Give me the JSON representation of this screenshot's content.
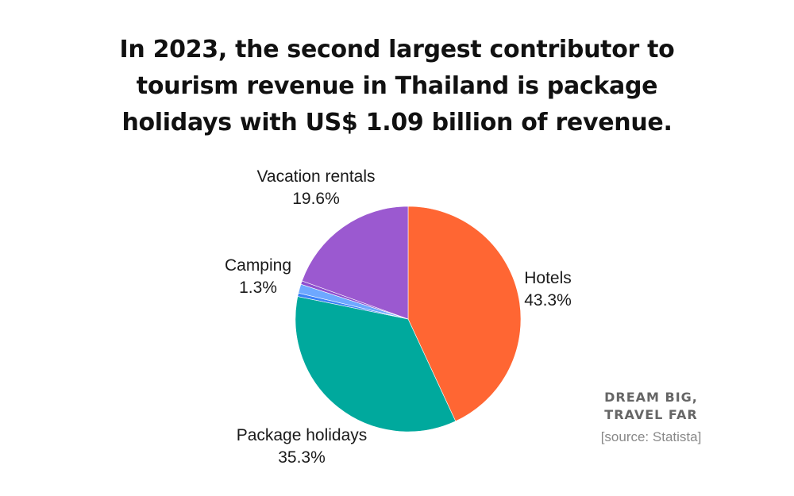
{
  "title_lines": [
    "In 2023, the second largest contributor to",
    "tourism revenue in Thailand is package",
    "holidays with US$ 1.09 billion of revenue."
  ],
  "brand_lines": [
    "DREAM BIG,",
    "TRAVEL FAR"
  ],
  "source": "[source: Statista]",
  "chart_data": {
    "type": "pie",
    "title": "In 2023, the second largest contributor to tourism revenue in Thailand is package holidays with US$ 1.09 billion of revenue.",
    "start_angle_deg": 0,
    "direction": "clockwise",
    "slices": [
      {
        "label": "Hotels",
        "value_label": "43.3%",
        "value": 43.3,
        "color": "#FF6633"
      },
      {
        "label": "Package holidays",
        "value_label": "35.3%",
        "value": 35.3,
        "color": "#00A99D"
      },
      {
        "label": "",
        "value_label": "",
        "value": 0.5,
        "color": "#3B82F6"
      },
      {
        "label": "Camping",
        "value_label": "1.3%",
        "value": 1.3,
        "color": "#6EA8FF"
      },
      {
        "label": "",
        "value_label": "",
        "value": 0.5,
        "color": "#8E4FCF"
      },
      {
        "label": "Vacation rentals",
        "value_label": "19.6%",
        "value": 19.6,
        "color": "#9B59D0"
      }
    ]
  }
}
